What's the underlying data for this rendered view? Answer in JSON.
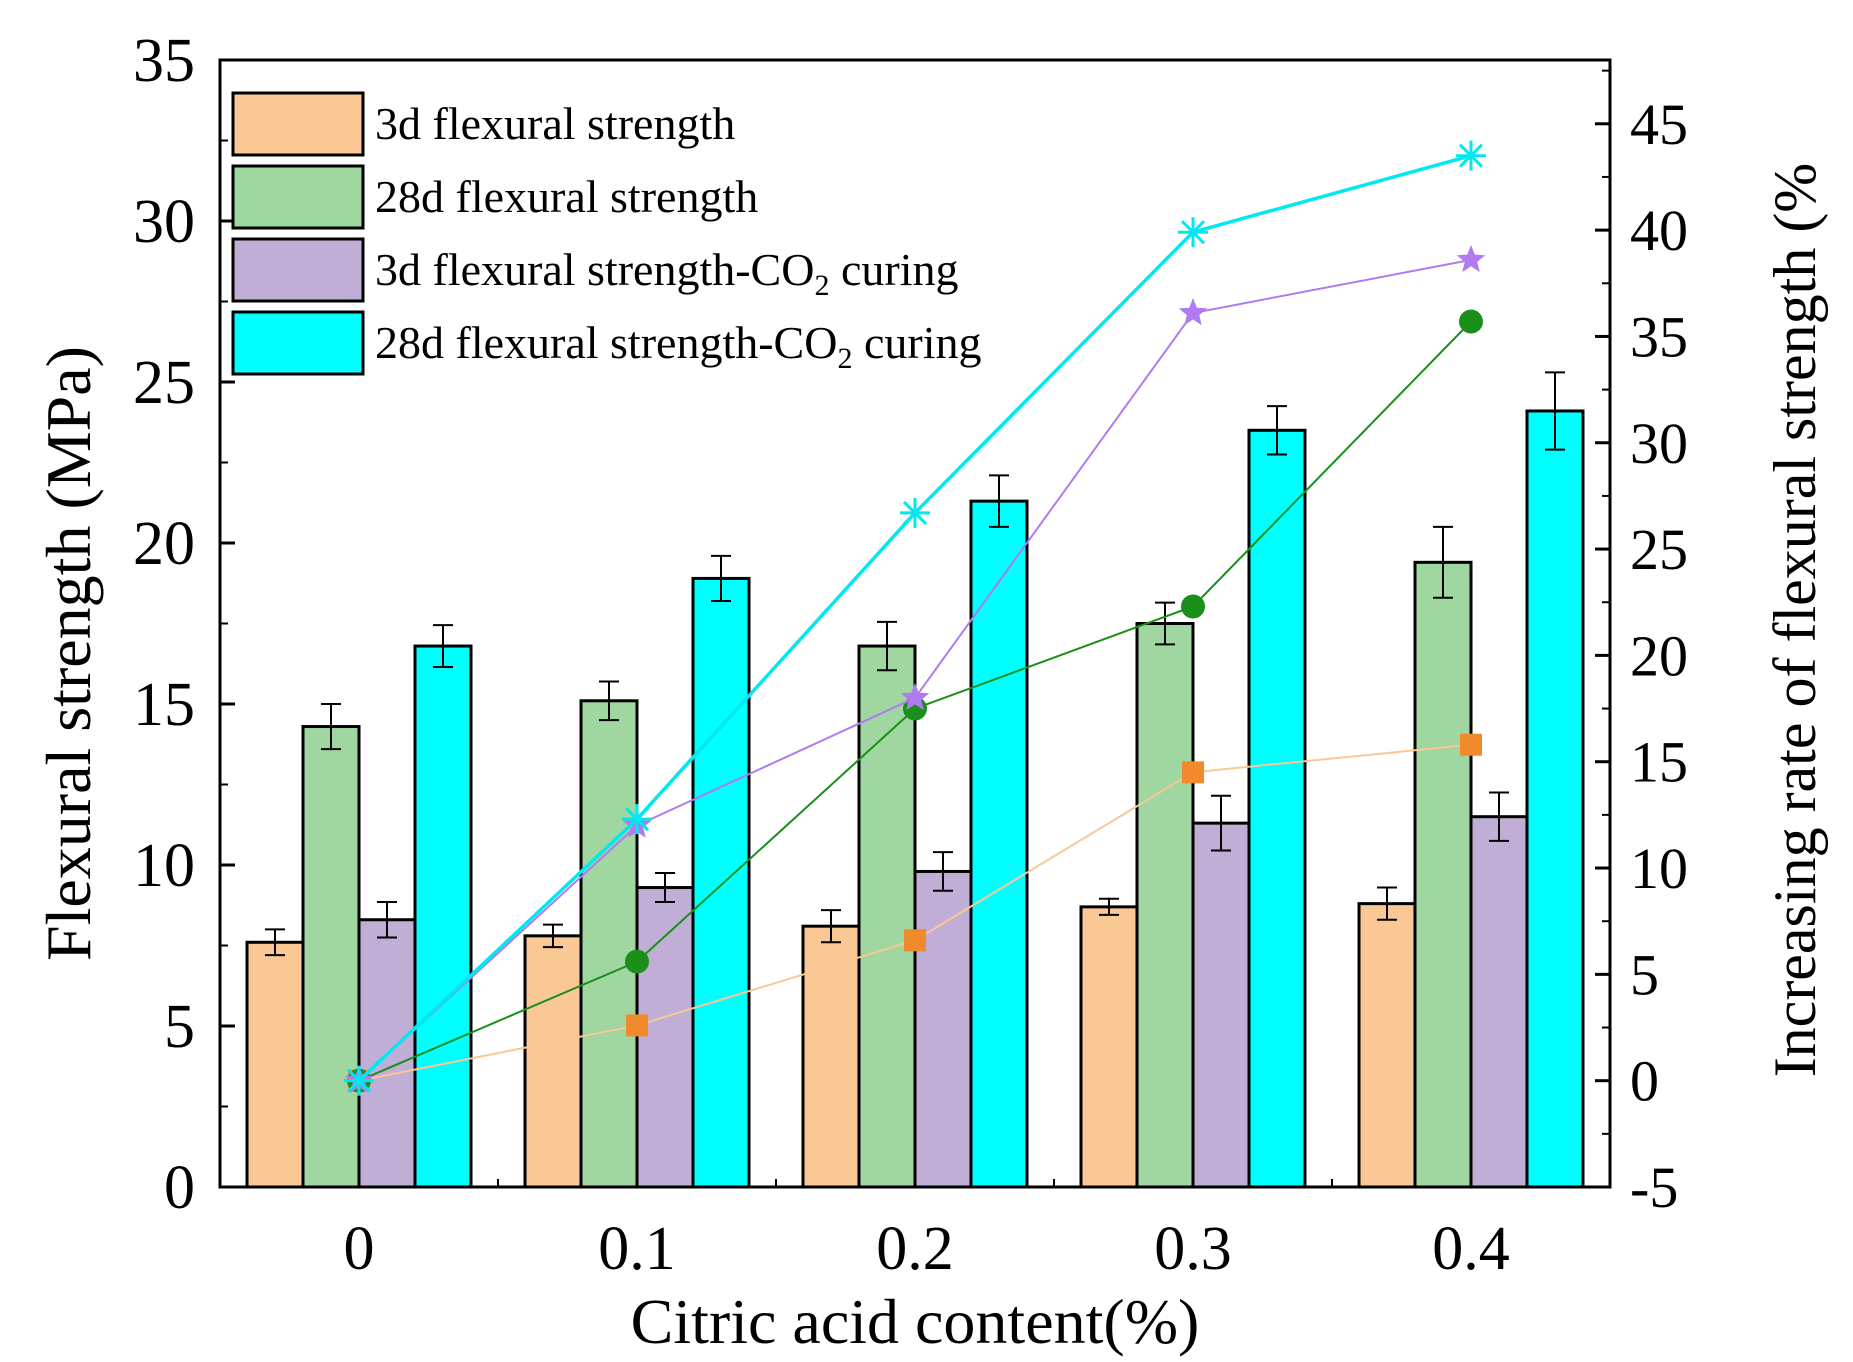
{
  "chart_data": {
    "type": "bar",
    "xlabel": "Citric acid content(%)",
    "ylabel_left": "Flexural strength (MPa)",
    "ylabel_right": "Increasing rate of flexural strength (%",
    "ylim_left": [
      0,
      35
    ],
    "ylim_right": [
      -5,
      48
    ],
    "categories": [
      "0",
      "0.1",
      "0.2",
      "0.3",
      "0.4"
    ],
    "left_ticks": [
      0,
      5,
      10,
      15,
      20,
      25,
      30,
      35
    ],
    "right_ticks": [
      -5,
      0,
      5,
      10,
      15,
      20,
      25,
      30,
      35,
      40,
      45
    ],
    "bar_series": [
      {
        "name": "3d flexural strength",
        "color": "#f9c895",
        "values": [
          7.6,
          7.8,
          8.1,
          8.7,
          8.8
        ],
        "errors": [
          0.4,
          0.35,
          0.5,
          0.25,
          0.5
        ]
      },
      {
        "name": "28d flexural strength",
        "color": "#a0d6a0",
        "values": [
          14.3,
          15.1,
          16.8,
          17.5,
          19.4
        ],
        "errors": [
          0.7,
          0.6,
          0.75,
          0.65,
          1.1
        ]
      },
      {
        "name": "3d flexural strength-CO2 curing",
        "color": "#c0aed6",
        "values": [
          8.3,
          9.3,
          9.8,
          11.3,
          11.5
        ],
        "errors": [
          0.55,
          0.45,
          0.6,
          0.85,
          0.75
        ]
      },
      {
        "name": "28d flexural strength-CO2 curing",
        "color": "#00ffff",
        "values": [
          16.8,
          18.9,
          21.3,
          23.5,
          24.1
        ],
        "errors": [
          0.65,
          0.7,
          0.8,
          0.75,
          1.2
        ]
      }
    ],
    "line_series": [
      {
        "name": "3d flexural strength",
        "color": "#f08a2c",
        "line_color": "#f9c895",
        "marker": "square",
        "values": [
          0,
          2.6,
          6.6,
          14.5,
          15.8
        ]
      },
      {
        "name": "28d flexural strength",
        "color": "#1a8f1a",
        "line_color": "#1a8f1a",
        "marker": "circle",
        "values": [
          0,
          5.6,
          17.5,
          22.3,
          35.7
        ]
      },
      {
        "name": "3d flexural strength-CO2 curing",
        "color": "#b07af0",
        "line_color": "#b07af0",
        "marker": "star",
        "values": [
          0,
          12.0,
          18.0,
          36.1,
          38.6
        ]
      },
      {
        "name": "28d flexural strength-CO2 curing",
        "color": "#00e8f0",
        "line_color": "#00e8f0",
        "marker": "asterisk",
        "values": [
          0,
          12.3,
          26.7,
          39.9,
          43.5
        ]
      }
    ],
    "legend": {
      "position": "top-left",
      "items": [
        {
          "prefix": "3d  flexural strength",
          "sub": "",
          "suffix": ""
        },
        {
          "prefix": "28d flexural strength",
          "sub": "",
          "suffix": ""
        },
        {
          "prefix": "3d  flexural strength-CO",
          "sub": "2",
          "suffix": " curing"
        },
        {
          "prefix": "28d flexural strength-CO",
          "sub": "2",
          "suffix": " curing"
        }
      ]
    }
  }
}
